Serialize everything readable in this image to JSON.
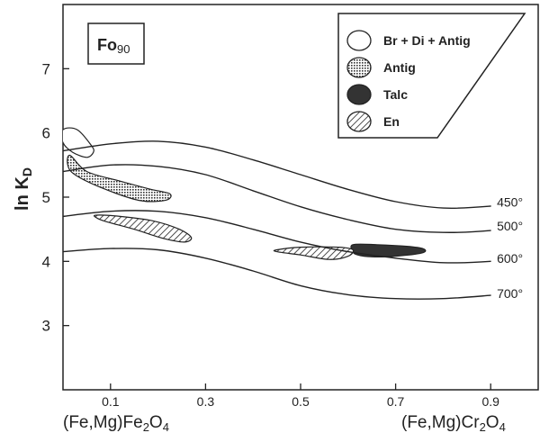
{
  "chart_data": {
    "type": "line",
    "title": "",
    "panel_label": "Fo",
    "panel_label_sub": "90",
    "ylabel_main": "ln K",
    "ylabel_sub": "D",
    "xlabel_left_parts": [
      "(Fe,Mg)Fe",
      "2",
      "O",
      "4"
    ],
    "xlabel_right_parts": [
      "(Fe,Mg)Cr",
      "2",
      "O",
      "4"
    ],
    "xlim": [
      0,
      1
    ],
    "ylim": [
      2,
      8
    ],
    "x_ticks": [
      0.1,
      0.3,
      0.5,
      0.7,
      0.9
    ],
    "x_tick_labels": [
      "0.1",
      "0.3",
      "0.5",
      "0.7",
      "0.9"
    ],
    "y_ticks": [
      3,
      4,
      5,
      6,
      7
    ],
    "y_tick_labels": [
      "3",
      "4",
      "5",
      "6",
      "7"
    ],
    "series": [
      {
        "name": "450°",
        "x": [
          0,
          0.1,
          0.2,
          0.3,
          0.4,
          0.5,
          0.6,
          0.7,
          0.8,
          0.9,
          0.95
        ],
        "y": [
          5.72,
          5.83,
          5.87,
          5.78,
          5.58,
          5.35,
          5.12,
          4.93,
          4.83,
          4.86,
          4.92
        ]
      },
      {
        "name": "500°",
        "x": [
          0,
          0.1,
          0.2,
          0.3,
          0.4,
          0.5,
          0.6,
          0.7,
          0.8,
          0.9,
          0.95
        ],
        "y": [
          5.4,
          5.5,
          5.48,
          5.35,
          5.1,
          4.85,
          4.65,
          4.5,
          4.45,
          4.48,
          4.55
        ]
      },
      {
        "name": "600°",
        "x": [
          0,
          0.1,
          0.2,
          0.3,
          0.4,
          0.5,
          0.6,
          0.7,
          0.8,
          0.9,
          0.95
        ],
        "y": [
          4.7,
          4.78,
          4.78,
          4.68,
          4.5,
          4.3,
          4.15,
          4.05,
          3.98,
          4.0,
          4.05
        ]
      },
      {
        "name": "700°",
        "x": [
          0,
          0.1,
          0.2,
          0.3,
          0.4,
          0.5,
          0.6,
          0.7,
          0.8,
          0.9,
          0.95
        ],
        "y": [
          4.15,
          4.2,
          4.18,
          4.05,
          3.85,
          3.62,
          3.48,
          3.42,
          3.42,
          3.47,
          3.5
        ]
      }
    ],
    "regions": [
      {
        "name": "Br + Di + Antig",
        "fill": "none",
        "x": [
          0,
          0.03,
          0.06,
          0.064,
          0.05,
          0.02,
          0
        ],
        "y": [
          6.05,
          6.05,
          5.8,
          5.7,
          5.62,
          5.7,
          5.85
        ]
      },
      {
        "name": "Antig",
        "fill": "dots",
        "x": [
          0.015,
          0.05,
          0.12,
          0.18,
          0.225,
          0.215,
          0.16,
          0.08,
          0.025,
          0.01
        ],
        "y": [
          5.65,
          5.4,
          5.25,
          5.13,
          5.05,
          4.95,
          4.95,
          5.15,
          5.35,
          5.5
        ]
      },
      {
        "name": "Talc",
        "fill": "solid",
        "x": [
          0.61,
          0.66,
          0.73,
          0.76,
          0.755,
          0.7,
          0.65,
          0.62,
          0.61
        ],
        "y": [
          4.26,
          4.26,
          4.23,
          4.19,
          4.13,
          4.08,
          4.07,
          4.1,
          4.15
        ]
      },
      {
        "name": "En",
        "fill": "hatch",
        "parts": [
          {
            "x": [
              0.07,
              0.12,
              0.19,
              0.245,
              0.27,
              0.255,
              0.21,
              0.15,
              0.09,
              0.07
            ],
            "y": [
              4.72,
              4.7,
              4.63,
              4.5,
              4.37,
              4.3,
              4.36,
              4.5,
              4.62,
              4.68
            ]
          },
          {
            "x": [
              0.45,
              0.5,
              0.58,
              0.61,
              0.6,
              0.56,
              0.5,
              0.45
            ],
            "y": [
              4.18,
              4.22,
              4.22,
              4.18,
              4.08,
              4.03,
              4.1,
              4.15
            ]
          }
        ]
      }
    ],
    "legend": {
      "placement": "top-right",
      "entries": [
        {
          "label": "Br + Di + Antig",
          "fill": "none"
        },
        {
          "label": "Antig",
          "fill": "dots"
        },
        {
          "label": "Talc",
          "fill": "solid"
        },
        {
          "label": "En",
          "fill": "hatch"
        }
      ]
    },
    "grid": false,
    "colors": {
      "ink": "#222222",
      "talc": "#333333",
      "background": "#ffffff"
    }
  }
}
